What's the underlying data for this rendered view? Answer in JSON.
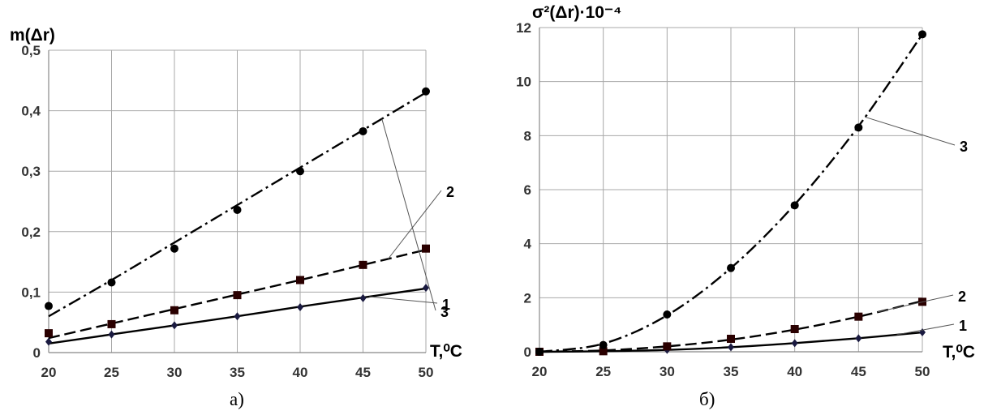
{
  "chart_data": [
    {
      "type": "line",
      "caption": "а)",
      "ylabel": "m(Δr)",
      "xlabel": "T,⁰C",
      "x": [
        20,
        25,
        30,
        35,
        40,
        45,
        50
      ],
      "xlim": [
        20,
        50
      ],
      "ylim": [
        0,
        0.5
      ],
      "yticks": [
        0,
        0.1,
        0.2,
        0.3,
        0.4,
        0.5
      ],
      "ytick_labels": [
        "0",
        "0,1",
        "0,2",
        "0,3",
        "0,4",
        "0,5"
      ],
      "xticks": [
        20,
        25,
        30,
        35,
        40,
        45,
        50
      ],
      "grid": true,
      "series": [
        {
          "name": "1",
          "marker": "diamond",
          "line": "solid",
          "values": [
            0.018,
            0.03,
            0.045,
            0.06,
            0.075,
            0.09,
            0.107
          ],
          "fit": [
            0.015,
            0.03,
            0.045,
            0.06,
            0.076,
            0.091,
            0.106
          ]
        },
        {
          "name": "2",
          "marker": "square",
          "line": "dashed",
          "values": [
            0.032,
            0.047,
            0.07,
            0.095,
            0.12,
            0.145,
            0.172
          ],
          "fit": [
            0.024,
            0.048,
            0.072,
            0.096,
            0.12,
            0.145,
            0.17
          ]
        },
        {
          "name": "3",
          "marker": "circle",
          "line": "dashdot",
          "values": [
            0.077,
            0.116,
            0.172,
            0.236,
            0.3,
            0.366,
            0.432
          ],
          "fit": [
            0.06,
            0.12,
            0.182,
            0.244,
            0.306,
            0.368,
            0.43
          ]
        }
      ],
      "callouts": [
        {
          "label": "1",
          "series": "1",
          "at_x": 45.5
        },
        {
          "label": "2",
          "series": "2",
          "at_x": 47
        },
        {
          "label": "3",
          "series": "3",
          "at_x": 46.5
        }
      ]
    },
    {
      "type": "line",
      "caption": "б)",
      "ylabel": "σ²(Δr)·10⁻⁴",
      "xlabel": "T,⁰C",
      "x": [
        20,
        25,
        30,
        35,
        40,
        45,
        50
      ],
      "xlim": [
        20,
        50
      ],
      "ylim": [
        0,
        12
      ],
      "yticks": [
        0,
        2,
        4,
        6,
        8,
        10,
        12
      ],
      "ytick_labels": [
        "0",
        "2",
        "4",
        "6",
        "8",
        "10",
        "12"
      ],
      "xticks": [
        20,
        25,
        30,
        35,
        40,
        45,
        50
      ],
      "grid": true,
      "series": [
        {
          "name": "1",
          "marker": "diamond",
          "line": "solid",
          "values": [
            0,
            0.02,
            0.07,
            0.17,
            0.32,
            0.5,
            0.72
          ],
          "fit": [
            0,
            0.02,
            0.07,
            0.17,
            0.32,
            0.5,
            0.72
          ]
        },
        {
          "name": "2",
          "marker": "square",
          "line": "dashed",
          "values": [
            0,
            0.02,
            0.2,
            0.48,
            0.84,
            1.3,
            1.85
          ],
          "fit": [
            0,
            0.05,
            0.2,
            0.45,
            0.82,
            1.3,
            1.88
          ]
        },
        {
          "name": "3",
          "marker": "circle",
          "line": "dashdot",
          "values": [
            0,
            0.25,
            1.38,
            3.1,
            5.42,
            8.3,
            11.75
          ],
          "fit": [
            0,
            0.3,
            1.35,
            3.1,
            5.45,
            8.35,
            11.75
          ]
        }
      ],
      "callouts": [
        {
          "label": "1",
          "series": "1",
          "at_x": 48
        },
        {
          "label": "2",
          "series": "2",
          "at_x": 46.5
        },
        {
          "label": "3",
          "series": "3",
          "at_x": 45.5
        }
      ]
    }
  ]
}
